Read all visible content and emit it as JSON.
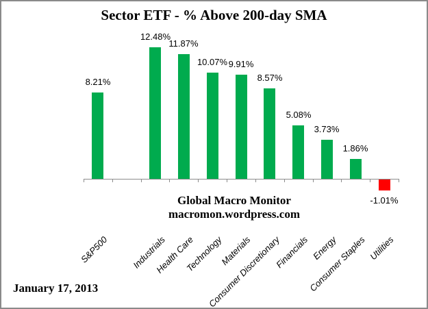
{
  "chart": {
    "title": "Sector ETF - % Above 200-day SMA",
    "watermark_line1": "Global Macro Monitor",
    "watermark_line2": "macromon.wordpress.com",
    "date_label": "January 17, 2013"
  },
  "chart_data": {
    "type": "bar",
    "title": "Sector ETF - % Above 200-day SMA",
    "categories": [
      "S&P500",
      "Industrials",
      "Health Care",
      "Technology",
      "Materials",
      "Consumer Discretionary",
      "Financials",
      "Energy",
      "Consumer Staples",
      "Utilities"
    ],
    "values": [
      8.21,
      12.48,
      11.87,
      10.07,
      9.91,
      8.57,
      5.08,
      3.73,
      1.86,
      -1.01
    ],
    "data_labels": [
      "8.21%",
      "12.48%",
      "11.87%",
      "10.07%",
      "9.91%",
      "8.57%",
      "5.08%",
      "3.73%",
      "1.86%",
      "-1.01%"
    ],
    "xlabel": "",
    "ylabel": "",
    "ylim": [
      -2,
      13
    ],
    "y_axis_visible": false,
    "gridlines": false,
    "legend": "none",
    "gap_slot_after_first_bar": true,
    "positive_color": "#00AB4E",
    "negative_color": "#FF0000",
    "axis_color": "#8C8C8C",
    "annotations": [
      "Global Macro Monitor",
      "macromon.wordpress.com",
      "January 17, 2013"
    ]
  }
}
